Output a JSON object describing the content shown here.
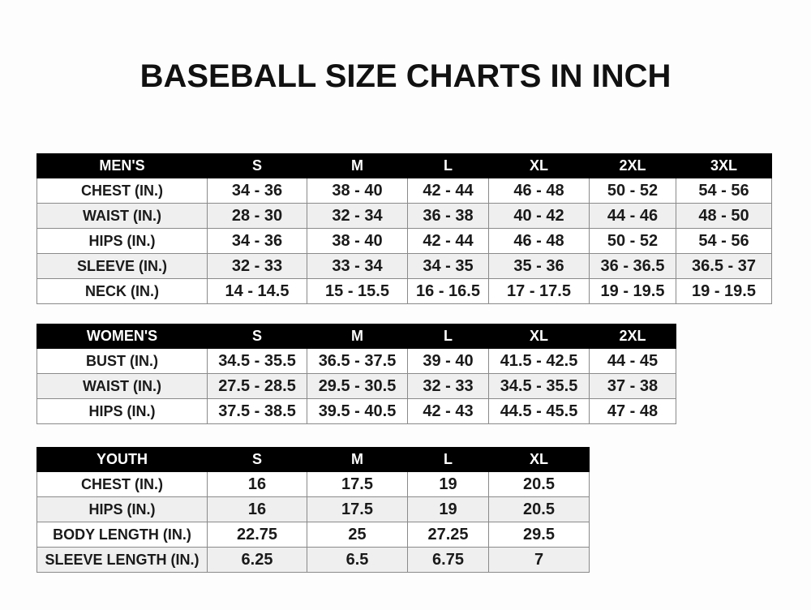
{
  "title": "BASEBALL SIZE CHARTS IN INCH",
  "mens": {
    "headers": [
      "MEN'S",
      "S",
      "M",
      "L",
      "XL",
      "2XL",
      "3XL"
    ],
    "rows": [
      [
        "CHEST (IN.)",
        "34 - 36",
        "38 - 40",
        "42 - 44",
        "46 - 48",
        "50 - 52",
        "54 - 56"
      ],
      [
        "WAIST (IN.)",
        "28 - 30",
        "32 - 34",
        "36 - 38",
        "40 - 42",
        "44 - 46",
        "48 - 50"
      ],
      [
        "HIPS (IN.)",
        "34 - 36",
        "38 - 40",
        "42 - 44",
        "46 - 48",
        "50 - 52",
        "54 - 56"
      ],
      [
        "SLEEVE (IN.)",
        "32 - 33",
        "33 - 34",
        "34 - 35",
        "35 - 36",
        "36 - 36.5",
        "36.5 - 37"
      ],
      [
        "NECK (IN.)",
        "14 - 14.5",
        "15 - 15.5",
        "16 - 16.5",
        "17 - 17.5",
        "19 - 19.5",
        "19 - 19.5"
      ]
    ]
  },
  "womens": {
    "headers": [
      "WOMEN'S",
      "S",
      "M",
      "L",
      "XL",
      "2XL"
    ],
    "rows": [
      [
        "BUST (IN.)",
        "34.5 - 35.5",
        "36.5 - 37.5",
        "39 - 40",
        "41.5 - 42.5",
        "44 - 45"
      ],
      [
        "WAIST (IN.)",
        "27.5 - 28.5",
        "29.5 - 30.5",
        "32 - 33",
        "34.5 - 35.5",
        "37 - 38"
      ],
      [
        "HIPS (IN.)",
        "37.5 - 38.5",
        "39.5 - 40.5",
        "42 - 43",
        "44.5 - 45.5",
        "47 - 48"
      ]
    ]
  },
  "youth": {
    "headers": [
      "YOUTH",
      "S",
      "M",
      "L",
      "XL"
    ],
    "rows": [
      [
        "CHEST (IN.)",
        "16",
        "17.5",
        "19",
        "20.5"
      ],
      [
        "HIPS (IN.)",
        "16",
        "17.5",
        "19",
        "20.5"
      ],
      [
        "BODY LENGTH (IN.)",
        "22.75",
        "25",
        "27.25",
        "29.5"
      ],
      [
        "SLEEVE LENGTH (IN.)",
        "6.25",
        "6.5",
        "6.75",
        "7"
      ]
    ]
  }
}
